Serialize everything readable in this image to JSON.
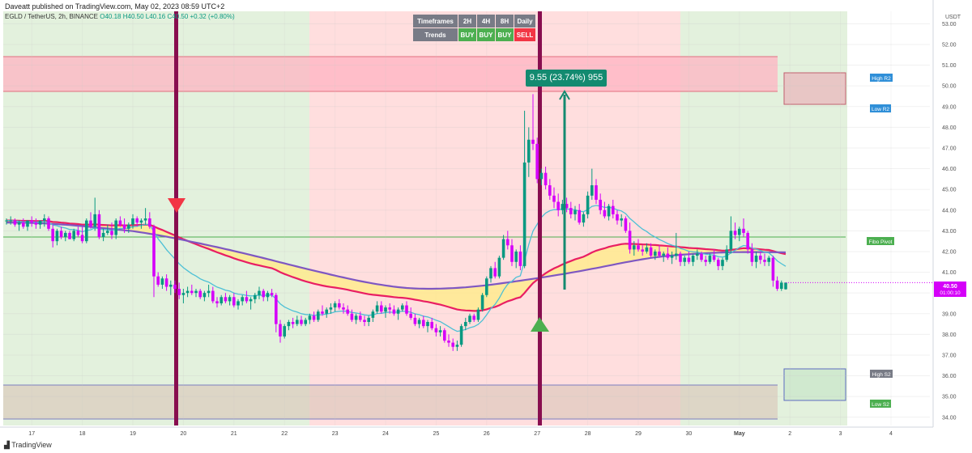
{
  "header": {
    "published_by": "Daveatt published on TradingView.com, May 02, 2023 08:59 UTC+2"
  },
  "symbol": {
    "pair": "EGLD / TetherUS, 2h, BINANCE",
    "open": "O40.18",
    "high": "H40.50",
    "low": "L40.16",
    "close": "C40.50",
    "change": "+0.32 (+0.80%)"
  },
  "timeframes_table": {
    "row_labels": [
      "Timeframes",
      "Trends"
    ],
    "timeframes": [
      "2H",
      "4H",
      "8H",
      "Daily"
    ],
    "trends": [
      "BUY",
      "BUY",
      "BUY",
      "SELL"
    ]
  },
  "measure_label": "9.55 (23.74%) 955",
  "branding": "TradingView",
  "colors": {
    "up": "#089981",
    "down": "#d500f9",
    "green_zone": "#e3f1dd",
    "red_zone": "#ffdede",
    "signal_bar": "#880e4f",
    "ema_red": "#e91e63",
    "sma_purple": "#7e57c2",
    "ema_cyan": "#4dc0d6",
    "cloud": "#ffeb8a"
  },
  "chart_data": {
    "type": "candlestick",
    "x_unit": "2h bars",
    "x_ticks": [
      {
        "label": "17",
        "bar": 6
      },
      {
        "label": "18",
        "bar": 18
      },
      {
        "label": "19",
        "bar": 30
      },
      {
        "label": "20",
        "bar": 42
      },
      {
        "label": "21",
        "bar": 54
      },
      {
        "label": "22",
        "bar": 66
      },
      {
        "label": "23",
        "bar": 78
      },
      {
        "label": "24",
        "bar": 90
      },
      {
        "label": "25",
        "bar": 102
      },
      {
        "label": "26",
        "bar": 114
      },
      {
        "label": "27",
        "bar": 126
      },
      {
        "label": "28",
        "bar": 138
      },
      {
        "label": "29",
        "bar": 150
      },
      {
        "label": "30",
        "bar": 162
      },
      {
        "label": "May",
        "bar": 174
      },
      {
        "label": "2",
        "bar": 186
      },
      {
        "label": "3",
        "bar": 198
      },
      {
        "label": "4",
        "bar": 210
      }
    ],
    "y_ticks": [
      "34.00",
      "35.00",
      "36.00",
      "37.00",
      "38.00",
      "39.00",
      "40.00",
      "41.00",
      "42.00",
      "43.00",
      "44.00",
      "45.00",
      "46.00",
      "47.00",
      "48.00",
      "49.00",
      "50.00",
      "51.00",
      "52.00",
      "53.00"
    ],
    "y_unit": "USDT",
    "ylim": [
      33.6,
      53.6
    ],
    "last_price": {
      "value": "40.50",
      "countdown": "01:00:10"
    },
    "candles": [
      [
        43.5,
        43.6,
        43.3,
        43.5
      ],
      [
        43.5,
        43.7,
        43.3,
        43.5
      ],
      [
        43.5,
        43.6,
        43.2,
        43.3
      ],
      [
        43.3,
        43.5,
        43.0,
        43.4
      ],
      [
        43.4,
        43.6,
        43.1,
        43.2
      ],
      [
        43.2,
        43.5,
        43.0,
        43.5
      ],
      [
        43.5,
        43.7,
        43.2,
        43.4
      ],
      [
        43.4,
        43.6,
        43.1,
        43.3
      ],
      [
        43.3,
        43.5,
        43.1,
        43.5
      ],
      [
        43.5,
        43.8,
        43.2,
        43.6
      ],
      [
        43.6,
        43.7,
        43.0,
        43.1
      ],
      [
        43.1,
        43.3,
        42.2,
        42.5
      ],
      [
        42.5,
        43.1,
        42.3,
        43.0
      ],
      [
        43.0,
        43.2,
        42.6,
        42.7
      ],
      [
        42.7,
        43.0,
        42.5,
        42.9
      ],
      [
        42.9,
        43.0,
        42.6,
        42.6
      ],
      [
        42.6,
        43.1,
        42.5,
        43.0
      ],
      [
        43.0,
        43.2,
        42.7,
        42.8
      ],
      [
        42.8,
        43.2,
        42.4,
        42.5
      ],
      [
        42.5,
        43.6,
        42.4,
        43.5
      ],
      [
        43.5,
        43.9,
        43.1,
        43.2
      ],
      [
        43.2,
        44.6,
        43.0,
        43.8
      ],
      [
        43.8,
        44.0,
        42.6,
        42.7
      ],
      [
        42.7,
        43.1,
        42.5,
        42.9
      ],
      [
        42.9,
        43.3,
        42.8,
        43.0
      ],
      [
        43.0,
        43.4,
        42.6,
        42.8
      ],
      [
        42.8,
        43.6,
        42.6,
        43.5
      ],
      [
        43.5,
        43.7,
        43.2,
        43.3
      ],
      [
        43.3,
        43.6,
        42.9,
        43.1
      ],
      [
        43.1,
        43.4,
        42.9,
        43.3
      ],
      [
        43.3,
        43.8,
        43.1,
        43.6
      ],
      [
        43.6,
        43.7,
        43.2,
        43.4
      ],
      [
        43.4,
        43.6,
        43.1,
        43.5
      ],
      [
        43.5,
        44.1,
        43.3,
        43.6
      ],
      [
        43.6,
        43.9,
        43.1,
        43.2
      ],
      [
        43.2,
        43.3,
        39.8,
        40.8
      ],
      [
        40.8,
        41.0,
        40.3,
        40.4
      ],
      [
        40.4,
        40.8,
        40.2,
        40.7
      ],
      [
        40.7,
        40.9,
        40.1,
        40.3
      ],
      [
        40.3,
        40.6,
        39.9,
        40.4
      ],
      [
        40.4,
        40.6,
        40.0,
        40.2
      ],
      [
        40.2,
        40.5,
        39.7,
        39.9
      ],
      [
        39.9,
        40.2,
        39.5,
        40.0
      ],
      [
        40.0,
        40.3,
        39.8,
        40.1
      ],
      [
        40.1,
        40.4,
        39.9,
        40.0
      ],
      [
        40.0,
        40.2,
        39.8,
        40.1
      ],
      [
        40.1,
        40.2,
        39.7,
        39.8
      ],
      [
        39.8,
        40.1,
        39.6,
        40.0
      ],
      [
        40.0,
        40.4,
        39.8,
        40.1
      ],
      [
        40.1,
        40.3,
        39.5,
        39.6
      ],
      [
        39.6,
        39.8,
        39.3,
        39.5
      ],
      [
        39.5,
        39.9,
        39.4,
        39.8
      ],
      [
        39.8,
        40.0,
        39.5,
        39.6
      ],
      [
        39.6,
        39.9,
        39.4,
        39.8
      ],
      [
        39.8,
        40.0,
        39.3,
        39.4
      ],
      [
        39.4,
        39.7,
        39.2,
        39.6
      ],
      [
        39.6,
        39.9,
        39.4,
        39.8
      ],
      [
        39.8,
        40.1,
        39.5,
        39.6
      ],
      [
        39.6,
        39.8,
        39.2,
        39.7
      ],
      [
        39.7,
        40.0,
        39.5,
        39.9
      ],
      [
        39.9,
        40.3,
        39.7,
        40.1
      ],
      [
        40.1,
        40.2,
        39.6,
        39.8
      ],
      [
        39.8,
        40.1,
        39.6,
        40.0
      ],
      [
        40.0,
        40.2,
        39.8,
        39.9
      ],
      [
        39.9,
        40.0,
        38.1,
        38.5
      ],
      [
        38.5,
        38.7,
        37.6,
        37.9
      ],
      [
        37.9,
        38.5,
        37.8,
        38.4
      ],
      [
        38.4,
        38.7,
        38.2,
        38.6
      ],
      [
        38.6,
        38.8,
        38.3,
        38.5
      ],
      [
        38.5,
        38.9,
        38.4,
        38.7
      ],
      [
        38.7,
        38.9,
        38.4,
        38.5
      ],
      [
        38.5,
        38.8,
        38.4,
        38.7
      ],
      [
        38.7,
        39.0,
        38.5,
        38.9
      ],
      [
        38.9,
        39.1,
        38.6,
        38.7
      ],
      [
        38.7,
        39.2,
        38.6,
        39.1
      ],
      [
        39.1,
        39.4,
        38.9,
        39.0
      ],
      [
        39.0,
        39.3,
        38.8,
        39.2
      ],
      [
        39.2,
        39.5,
        39.0,
        39.3
      ],
      [
        39.3,
        39.6,
        39.1,
        39.5
      ],
      [
        39.5,
        39.7,
        39.2,
        39.3
      ],
      [
        39.3,
        39.5,
        39.0,
        39.2
      ],
      [
        39.2,
        39.4,
        38.9,
        39.0
      ],
      [
        39.0,
        39.2,
        38.6,
        38.7
      ],
      [
        38.7,
        39.0,
        38.5,
        38.9
      ],
      [
        38.9,
        39.1,
        38.6,
        38.7
      ],
      [
        38.7,
        38.9,
        38.4,
        38.6
      ],
      [
        38.6,
        38.9,
        38.4,
        38.8
      ],
      [
        38.8,
        39.2,
        38.6,
        39.1
      ],
      [
        39.1,
        39.6,
        39.0,
        39.4
      ],
      [
        39.4,
        39.6,
        39.0,
        39.1
      ],
      [
        39.1,
        39.4,
        38.8,
        39.3
      ],
      [
        39.3,
        39.5,
        39.0,
        39.2
      ],
      [
        39.2,
        39.4,
        38.9,
        39.0
      ],
      [
        39.0,
        39.3,
        38.7,
        39.2
      ],
      [
        39.2,
        39.5,
        39.1,
        39.4
      ],
      [
        39.4,
        39.6,
        38.9,
        39.0
      ],
      [
        39.0,
        39.3,
        38.7,
        38.8
      ],
      [
        38.8,
        39.0,
        38.4,
        38.5
      ],
      [
        38.5,
        38.8,
        38.3,
        38.7
      ],
      [
        38.7,
        38.9,
        38.3,
        38.4
      ],
      [
        38.4,
        38.7,
        38.1,
        38.6
      ],
      [
        38.6,
        38.8,
        38.2,
        38.3
      ],
      [
        38.3,
        38.5,
        37.9,
        38.1
      ],
      [
        38.1,
        38.4,
        37.9,
        38.2
      ],
      [
        38.2,
        38.3,
        37.6,
        37.7
      ],
      [
        37.7,
        38.0,
        37.4,
        37.6
      ],
      [
        37.6,
        37.8,
        37.2,
        37.4
      ],
      [
        37.4,
        37.7,
        37.2,
        37.5
      ],
      [
        37.5,
        38.5,
        37.4,
        38.4
      ],
      [
        38.4,
        38.8,
        38.2,
        38.6
      ],
      [
        38.6,
        39.0,
        38.5,
        38.9
      ],
      [
        38.9,
        39.0,
        38.6,
        38.7
      ],
      [
        38.7,
        39.3,
        38.6,
        39.2
      ],
      [
        39.2,
        40.0,
        39.1,
        39.9
      ],
      [
        39.9,
        40.8,
        39.8,
        40.7
      ],
      [
        40.7,
        41.3,
        40.5,
        41.2
      ],
      [
        41.2,
        41.5,
        40.7,
        40.8
      ],
      [
        40.8,
        41.8,
        40.7,
        41.7
      ],
      [
        41.7,
        42.8,
        41.6,
        42.6
      ],
      [
        42.6,
        43.0,
        42.1,
        42.3
      ],
      [
        42.3,
        42.6,
        41.3,
        41.5
      ],
      [
        41.5,
        42.1,
        41.2,
        42.0
      ],
      [
        42.0,
        42.3,
        41.1,
        41.3
      ],
      [
        41.3,
        48.8,
        41.2,
        46.3
      ],
      [
        46.3,
        48.0,
        45.6,
        47.4
      ],
      [
        47.4,
        49.6,
        46.9,
        47.2
      ],
      [
        47.2,
        47.5,
        45.3,
        45.5
      ],
      [
        45.5,
        46.0,
        45.2,
        45.8
      ],
      [
        45.8,
        46.1,
        45.0,
        45.2
      ],
      [
        45.2,
        45.5,
        44.5,
        44.7
      ],
      [
        44.7,
        45.1,
        44.1,
        44.4
      ],
      [
        44.4,
        44.8,
        43.7,
        44.0
      ],
      [
        44.0,
        44.5,
        43.8,
        44.3
      ],
      [
        44.3,
        44.6,
        43.9,
        44.1
      ],
      [
        44.1,
        44.4,
        43.6,
        43.8
      ],
      [
        43.8,
        44.2,
        43.5,
        44.0
      ],
      [
        44.0,
        44.3,
        43.3,
        43.4
      ],
      [
        43.4,
        43.9,
        43.2,
        43.8
      ],
      [
        43.8,
        44.9,
        43.6,
        44.7
      ],
      [
        44.7,
        46.0,
        44.5,
        45.2
      ],
      [
        45.2,
        45.5,
        44.3,
        44.5
      ],
      [
        44.5,
        44.8,
        43.8,
        44.0
      ],
      [
        44.0,
        44.4,
        43.6,
        43.7
      ],
      [
        43.7,
        44.3,
        43.5,
        44.2
      ],
      [
        44.2,
        44.5,
        43.6,
        43.8
      ],
      [
        43.8,
        44.0,
        43.3,
        43.5
      ],
      [
        43.5,
        43.8,
        43.2,
        43.6
      ],
      [
        43.6,
        43.7,
        42.9,
        43.0
      ],
      [
        43.0,
        43.4,
        41.9,
        42.1
      ],
      [
        42.1,
        42.5,
        41.8,
        42.3
      ],
      [
        42.3,
        42.6,
        42.0,
        42.1
      ],
      [
        42.1,
        42.3,
        41.8,
        42.0
      ],
      [
        42.0,
        42.4,
        41.9,
        42.2
      ],
      [
        42.2,
        42.4,
        41.7,
        41.8
      ],
      [
        41.8,
        42.1,
        41.6,
        42.0
      ],
      [
        42.0,
        42.3,
        41.7,
        41.8
      ],
      [
        41.8,
        42.0,
        41.5,
        41.9
      ],
      [
        41.9,
        42.2,
        41.6,
        41.7
      ],
      [
        41.7,
        42.0,
        41.4,
        41.8
      ],
      [
        41.8,
        42.9,
        41.6,
        41.9
      ],
      [
        41.9,
        42.0,
        41.3,
        41.5
      ],
      [
        41.5,
        41.8,
        41.3,
        41.7
      ],
      [
        41.7,
        42.0,
        41.4,
        41.5
      ],
      [
        41.5,
        41.9,
        41.3,
        41.8
      ],
      [
        41.8,
        42.1,
        41.6,
        41.9
      ],
      [
        41.9,
        42.0,
        41.5,
        41.6
      ],
      [
        41.6,
        41.8,
        41.3,
        41.5
      ],
      [
        41.5,
        41.9,
        41.4,
        41.8
      ],
      [
        41.8,
        42.1,
        41.5,
        41.6
      ],
      [
        41.6,
        41.7,
        41.1,
        41.3
      ],
      [
        41.3,
        41.7,
        41.1,
        41.6
      ],
      [
        41.6,
        42.3,
        41.5,
        42.1
      ],
      [
        42.1,
        43.7,
        41.9,
        43.0
      ],
      [
        43.0,
        43.4,
        42.6,
        42.8
      ],
      [
        42.8,
        43.2,
        42.5,
        43.1
      ],
      [
        43.1,
        43.6,
        42.7,
        42.9
      ],
      [
        42.9,
        43.0,
        41.9,
        42.1
      ],
      [
        42.1,
        42.4,
        41.3,
        41.5
      ],
      [
        41.5,
        42.0,
        41.2,
        41.8
      ],
      [
        41.8,
        42.0,
        41.4,
        41.6
      ],
      [
        41.6,
        41.9,
        41.3,
        41.5
      ],
      [
        41.5,
        41.8,
        41.3,
        41.7
      ],
      [
        41.7,
        41.8,
        40.3,
        40.6
      ],
      [
        40.6,
        40.8,
        40.1,
        40.2
      ],
      [
        40.2,
        40.6,
        40.1,
        40.5
      ],
      [
        40.18,
        40.5,
        40.16,
        40.5
      ]
    ]
  }
}
